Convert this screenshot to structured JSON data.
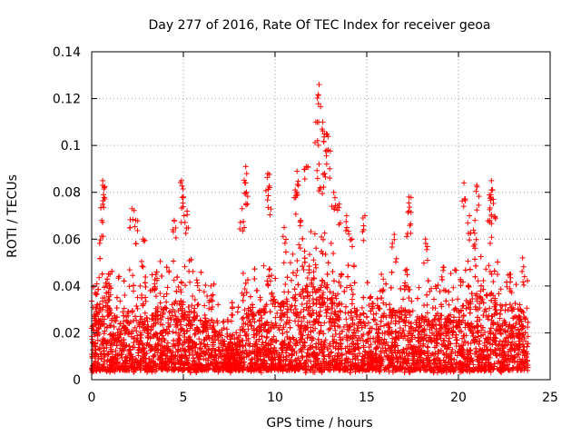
{
  "chart_data": {
    "type": "scatter",
    "title": "Day 277 of 2016, Rate Of TEC Index for receiver geoa",
    "xlabel": "GPS time / hours",
    "ylabel": "ROTI / TECUs",
    "xlim": [
      0,
      25
    ],
    "ylim": [
      0,
      0.14
    ],
    "xticks": [
      0,
      5,
      10,
      15,
      20,
      25
    ],
    "yticks": [
      0,
      0.02,
      0.04,
      0.06,
      0.08,
      0.1,
      0.12,
      0.14
    ],
    "xtick_labels": [
      "0",
      "5",
      "10",
      "15",
      "20",
      "25"
    ],
    "ytick_labels": [
      "0",
      "0.02",
      "0.04",
      "0.06",
      "0.08",
      "0.1",
      "0.12",
      "0.14"
    ],
    "grid": true,
    "marker": "+",
    "color": "#ff0000",
    "data_range_x": [
      0,
      23.8
    ],
    "series": [
      {
        "name": "ROTI",
        "points_note": "dense cloud 0.003-0.03 across the day; notable peaks listed below",
        "peaks": [
          {
            "x": 0.6,
            "y": 0.085
          },
          {
            "x": 0.6,
            "y": 0.083
          },
          {
            "x": 0.55,
            "y": 0.068
          },
          {
            "x": 2.2,
            "y": 0.073
          },
          {
            "x": 2.4,
            "y": 0.068
          },
          {
            "x": 2.8,
            "y": 0.06
          },
          {
            "x": 4.5,
            "y": 0.068
          },
          {
            "x": 4.9,
            "y": 0.085
          },
          {
            "x": 5.0,
            "y": 0.078
          },
          {
            "x": 5.2,
            "y": 0.072
          },
          {
            "x": 8.4,
            "y": 0.091
          },
          {
            "x": 8.4,
            "y": 0.084
          },
          {
            "x": 8.2,
            "y": 0.073
          },
          {
            "x": 9.6,
            "y": 0.088
          },
          {
            "x": 9.7,
            "y": 0.082
          },
          {
            "x": 11.2,
            "y": 0.089
          },
          {
            "x": 11.1,
            "y": 0.081
          },
          {
            "x": 11.7,
            "y": 0.091
          },
          {
            "x": 12.4,
            "y": 0.126
          },
          {
            "x": 12.3,
            "y": 0.11
          },
          {
            "x": 12.6,
            "y": 0.11
          },
          {
            "x": 12.8,
            "y": 0.105
          },
          {
            "x": 12.9,
            "y": 0.098
          },
          {
            "x": 12.4,
            "y": 0.092
          },
          {
            "x": 12.7,
            "y": 0.088
          },
          {
            "x": 13.2,
            "y": 0.08
          },
          {
            "x": 13.5,
            "y": 0.075
          },
          {
            "x": 13.9,
            "y": 0.07
          },
          {
            "x": 14.9,
            "y": 0.07
          },
          {
            "x": 16.5,
            "y": 0.062
          },
          {
            "x": 17.3,
            "y": 0.078
          },
          {
            "x": 17.3,
            "y": 0.072
          },
          {
            "x": 18.2,
            "y": 0.06
          },
          {
            "x": 20.3,
            "y": 0.084
          },
          {
            "x": 20.6,
            "y": 0.07
          },
          {
            "x": 20.9,
            "y": 0.068
          },
          {
            "x": 21.0,
            "y": 0.083
          },
          {
            "x": 21.8,
            "y": 0.085
          },
          {
            "x": 21.8,
            "y": 0.081
          },
          {
            "x": 21.9,
            "y": 0.077
          },
          {
            "x": 21.7,
            "y": 0.068
          },
          {
            "x": 23.5,
            "y": 0.052
          },
          {
            "x": 1.0,
            "y": 0.045
          },
          {
            "x": 3.5,
            "y": 0.045
          },
          {
            "x": 6.5,
            "y": 0.04
          },
          {
            "x": 10.5,
            "y": 0.065
          },
          {
            "x": 11.4,
            "y": 0.068
          },
          {
            "x": 14.2,
            "y": 0.06
          },
          {
            "x": 15.8,
            "y": 0.045
          },
          {
            "x": 19.2,
            "y": 0.048
          },
          {
            "x": 22.8,
            "y": 0.045
          }
        ]
      }
    ]
  }
}
